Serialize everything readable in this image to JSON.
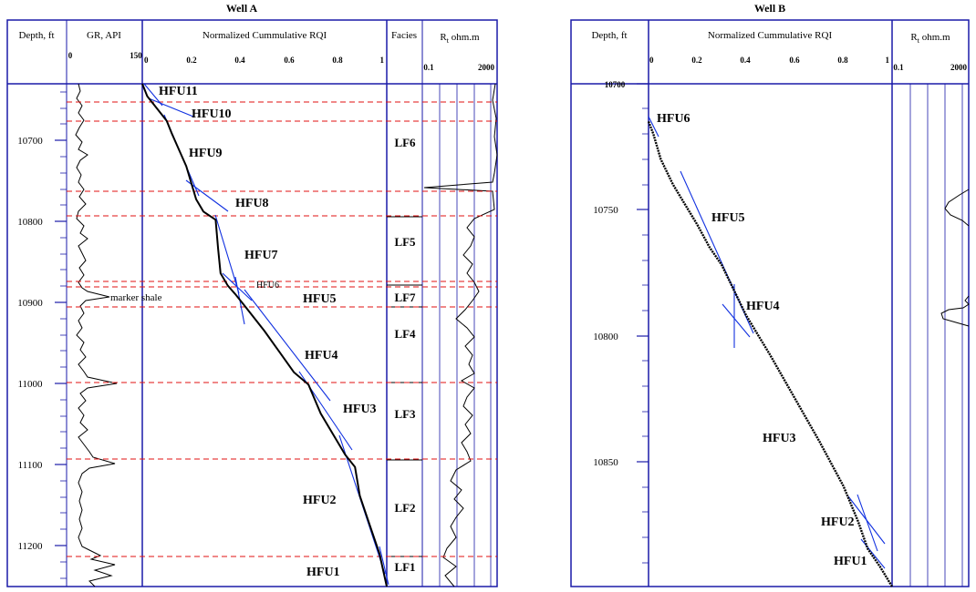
{
  "panel_a": {
    "title": "Well A",
    "headers": {
      "depth": "Depth, ft",
      "gr": "GR, API",
      "rqi": "Normalized Cummulative RQI",
      "facies": "Facies",
      "rt_main": "R",
      "rt_sub": "t",
      "rt_unit": " ohm.m"
    },
    "gr_ticks": [
      "0",
      "150"
    ],
    "rqi_ticks": [
      "0",
      "0.2",
      "0.4",
      "0.6",
      "0.8",
      "1"
    ],
    "rt_ticks": [
      "0.1",
      "2000"
    ],
    "depth_ticks": [
      "10700",
      "10800",
      "10900",
      "11000",
      "11100",
      "11200"
    ],
    "marker_label": "marker shale",
    "facies_labels": [
      "LF6",
      "LF5",
      "LF7",
      "LF4",
      "LF3",
      "LF2",
      "LF1"
    ],
    "hfu_labels": [
      "HFU11",
      "HFU10",
      "HFU9",
      "HFU8",
      "HFU7",
      "HFU6",
      "HFU5",
      "HFU4",
      "HFU3",
      "HFU2",
      "HFU1"
    ]
  },
  "panel_b": {
    "title": "Well B",
    "headers": {
      "depth": "Depth, ft",
      "rqi": "Normalized Cummulative RQI",
      "rt_main": "R",
      "rt_sub": "t",
      "rt_unit": " ohm.m"
    },
    "rqi_ticks": [
      "0",
      "0.2",
      "0.4",
      "0.6",
      "0.8",
      "1"
    ],
    "rt_ticks": [
      "0.1",
      "2000"
    ],
    "depth_ticks": [
      "10700",
      "10750",
      "10800",
      "10850"
    ],
    "hfu_labels": [
      "HFU6",
      "HFU5",
      "HFU4",
      "HFU3",
      "HFU2",
      "HFU1"
    ]
  },
  "colors": {
    "frame": "#1a1aa8",
    "boundary": "#e01010",
    "trend": "#1030e0",
    "curve": "#000000"
  },
  "chart_data": [
    {
      "type": "line",
      "title": "Well A",
      "ylabel": "Depth, ft",
      "ylim": [
        11240,
        10630
      ],
      "xlabel": "Normalized Cummulative RQI",
      "xlim": [
        0,
        1
      ],
      "series": [
        {
          "values": [
            [
              0,
              10630
            ],
            [
              0.02,
              10645
            ],
            [
              0.06,
              10660
            ],
            [
              0.1,
              10675
            ],
            [
              0.12,
              10690
            ],
            [
              0.15,
              10710
            ],
            [
              0.18,
              10730
            ],
            [
              0.2,
              10750
            ],
            [
              0.22,
              10770
            ],
            [
              0.25,
              10785
            ],
            [
              0.3,
              10795
            ],
            [
              0.31,
              10830
            ],
            [
              0.32,
              10860
            ],
            [
              0.35,
              10875
            ],
            [
              0.38,
              10885
            ],
            [
              0.42,
              10900
            ],
            [
              0.5,
              10930
            ],
            [
              0.56,
              10955
            ],
            [
              0.62,
              10980
            ],
            [
              0.68,
              10995
            ],
            [
              0.73,
              11030
            ],
            [
              0.78,
              11055
            ],
            [
              0.83,
              11080
            ],
            [
              0.87,
              11095
            ],
            [
              0.89,
              11130
            ],
            [
              0.93,
              11165
            ],
            [
              0.97,
              11200
            ],
            [
              1.0,
              11240
            ]
          ]
        }
      ],
      "hfu_boundaries_ft": [
        10652,
        10675,
        10762,
        10793,
        10872,
        10880,
        10905,
        10995,
        11092,
        11212
      ],
      "facies_boundaries_ft": [
        10762,
        10793,
        10875,
        10905,
        10995,
        11092,
        11212
      ]
    },
    {
      "type": "line",
      "title": "Well B",
      "ylabel": "Depth, ft",
      "ylim": [
        10900,
        10700
      ],
      "xlabel": "Normalized Cummulative RQI",
      "xlim": [
        0,
        1
      ],
      "series": [
        {
          "values": [
            [
              0,
              10715
            ],
            [
              0.02,
              10720
            ],
            [
              0.05,
              10730
            ],
            [
              0.1,
              10740
            ],
            [
              0.15,
              10748
            ],
            [
              0.2,
              10756
            ],
            [
              0.25,
              10765
            ],
            [
              0.3,
              10772
            ],
            [
              0.35,
              10782
            ],
            [
              0.4,
              10792
            ],
            [
              0.5,
              10808
            ],
            [
              0.6,
              10825
            ],
            [
              0.7,
              10842
            ],
            [
              0.8,
              10860
            ],
            [
              0.86,
              10874
            ],
            [
              0.9,
              10885
            ],
            [
              0.95,
              10892
            ],
            [
              1.0,
              10900
            ]
          ]
        }
      ]
    }
  ]
}
